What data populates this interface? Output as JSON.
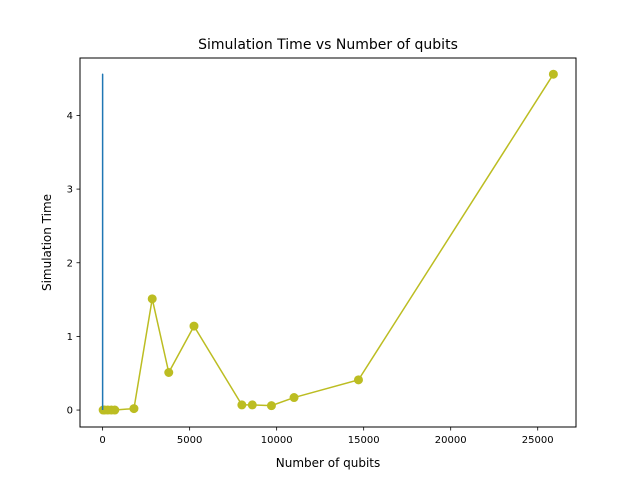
{
  "chart_data": {
    "type": "line",
    "title": "Simulation Time vs Number of qubits",
    "xlabel": "Number of qubits",
    "ylabel": "Simulation Time",
    "xlim": [
      -1300,
      27200
    ],
    "ylim": [
      -0.23,
      4.78
    ],
    "x_ticks": [
      0,
      5000,
      10000,
      15000,
      20000,
      25000
    ],
    "x_tick_labels": [
      "0",
      "5000",
      "10000",
      "15000",
      "20000",
      "25000"
    ],
    "y_ticks": [
      0,
      1,
      2,
      3,
      4
    ],
    "y_tick_labels": [
      "0",
      "1",
      "2",
      "3",
      "4"
    ],
    "grid": false,
    "series": [
      {
        "color": "#bcbd22",
        "marker": "circle",
        "points": [
          {
            "x": 30,
            "y": 0.0
          },
          {
            "x": 120,
            "y": 0.0
          },
          {
            "x": 300,
            "y": 0.0
          },
          {
            "x": 500,
            "y": 0.0
          },
          {
            "x": 700,
            "y": 0.0
          },
          {
            "x": 1800,
            "y": 0.02
          },
          {
            "x": 2850,
            "y": 1.51
          },
          {
            "x": 3800,
            "y": 0.51
          },
          {
            "x": 5250,
            "y": 1.14
          },
          {
            "x": 8000,
            "y": 0.07
          },
          {
            "x": 8600,
            "y": 0.07
          },
          {
            "x": 9700,
            "y": 0.06
          },
          {
            "x": 11000,
            "y": 0.17
          },
          {
            "x": 14700,
            "y": 0.41
          },
          {
            "x": 25900,
            "y": 4.56
          }
        ]
      },
      {
        "color": "#1f77b4",
        "marker": "none",
        "points": [
          {
            "x": 0,
            "y": 0.0
          },
          {
            "x": 0,
            "y": 0.51
          },
          {
            "x": 0,
            "y": 1.51
          },
          {
            "x": 0,
            "y": 0.07
          },
          {
            "x": 0,
            "y": 1.14
          },
          {
            "x": 0,
            "y": 0.41
          },
          {
            "x": 0,
            "y": 4.56
          },
          {
            "x": 0,
            "y": 0.02
          }
        ]
      }
    ]
  }
}
